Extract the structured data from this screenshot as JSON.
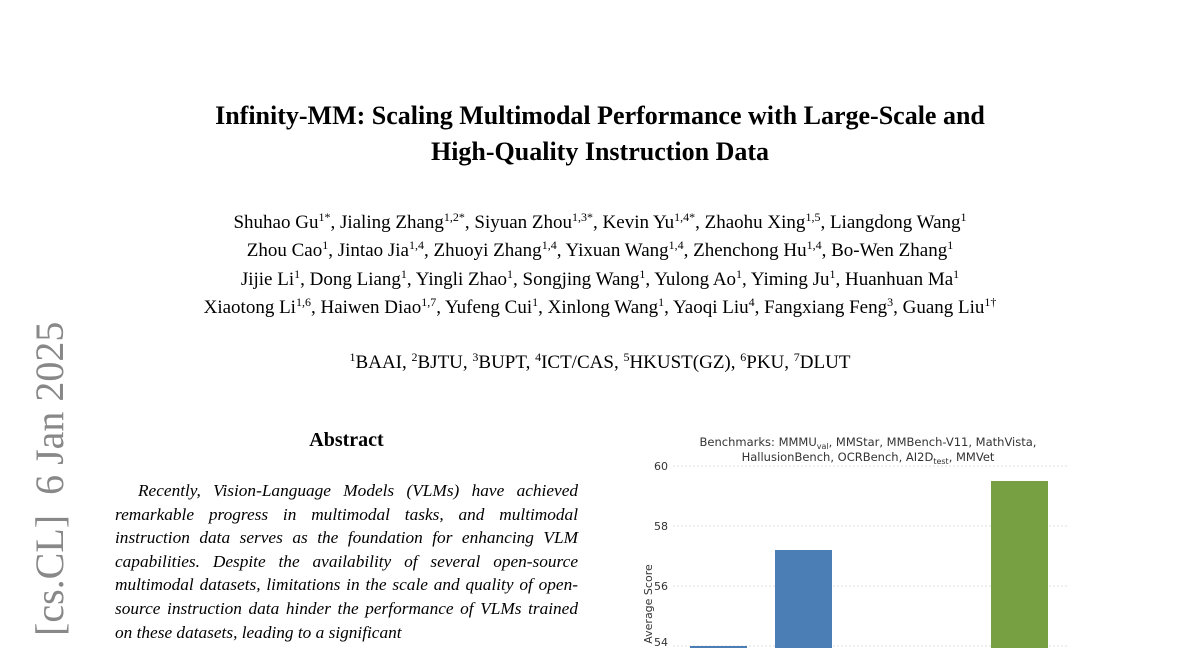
{
  "arxiv_stamp": "[cs.CL]  6 Jan 2025",
  "title": [
    "Infinity-MM: Scaling Multimodal Performance with Large-Scale and",
    "High-Quality Instruction Data"
  ],
  "authors": [
    [
      {
        "name": "Shuhao Gu",
        "sup": "1*"
      },
      {
        "name": "Jialing Zhang",
        "sup": "1,2*"
      },
      {
        "name": "Siyuan Zhou",
        "sup": "1,3*"
      },
      {
        "name": "Kevin Yu",
        "sup": "1,4*"
      },
      {
        "name": "Zhaohu Xing",
        "sup": "1,5"
      },
      {
        "name": "Liangdong Wang",
        "sup": "1"
      }
    ],
    [
      {
        "name": "Zhou Cao",
        "sup": "1"
      },
      {
        "name": "Jintao Jia",
        "sup": "1,4"
      },
      {
        "name": "Zhuoyi Zhang",
        "sup": "1,4"
      },
      {
        "name": "Yixuan Wang",
        "sup": "1,4"
      },
      {
        "name": "Zhenchong Hu",
        "sup": "1,4"
      },
      {
        "name": "Bo-Wen Zhang",
        "sup": "1"
      }
    ],
    [
      {
        "name": "Jijie Li",
        "sup": "1"
      },
      {
        "name": "Dong Liang",
        "sup": "1"
      },
      {
        "name": "Yingli Zhao",
        "sup": "1"
      },
      {
        "name": "Songjing Wang",
        "sup": "1"
      },
      {
        "name": "Yulong Ao",
        "sup": "1"
      },
      {
        "name": "Yiming Ju",
        "sup": "1"
      },
      {
        "name": "Huanhuan Ma",
        "sup": "1"
      }
    ],
    [
      {
        "name": "Xiaotong Li",
        "sup": "1,6"
      },
      {
        "name": "Haiwen Diao",
        "sup": "1,7"
      },
      {
        "name": "Yufeng Cui",
        "sup": "1"
      },
      {
        "name": "Xinlong Wang",
        "sup": "1"
      },
      {
        "name": "Yaoqi Liu",
        "sup": "4"
      },
      {
        "name": "Fangxiang Feng",
        "sup": "3"
      },
      {
        "name": "Guang Liu",
        "sup": "1†"
      }
    ]
  ],
  "affiliations": [
    {
      "sup": "1",
      "name": "BAAI"
    },
    {
      "sup": "2",
      "name": "BJTU"
    },
    {
      "sup": "3",
      "name": "BUPT"
    },
    {
      "sup": "4",
      "name": "ICT/CAS"
    },
    {
      "sup": "5",
      "name": "HKUST(GZ)"
    },
    {
      "sup": "6",
      "name": "PKU"
    },
    {
      "sup": "7",
      "name": "DLUT"
    }
  ],
  "abstract": {
    "heading": "Abstract",
    "text": "Recently, Vision-Language Models (VLMs) have achieved remarkable progress in multimodal tasks, and multimodal instruction data serves as the foundation for enhancing VLM capabilities. Despite the availability of several open-source multimodal datasets, limitations in the scale and quality of open-source instruction data hinder the performance of VLMs trained on these datasets, leading to a significant"
  },
  "chart_data": {
    "type": "bar",
    "title_line1": {
      "pre": "Benchmarks: MMMU",
      "sub": "val",
      "post": ", MMStar, MMBench-V11, MathVista,"
    },
    "title_line2": {
      "pre": "HallusionBench, OCRBench, AI2D",
      "sub": "test",
      "post": ", MMVet"
    },
    "ylabel": "Average Score",
    "ylim": [
      53.5,
      60
    ],
    "yticks": [
      "54",
      "56",
      "58",
      "60"
    ],
    "grid": true,
    "values": [
      54.0,
      57.2,
      59.5
    ],
    "colors": [
      "#4a7eb5",
      "#4a7eb5",
      "#76a042"
    ]
  }
}
